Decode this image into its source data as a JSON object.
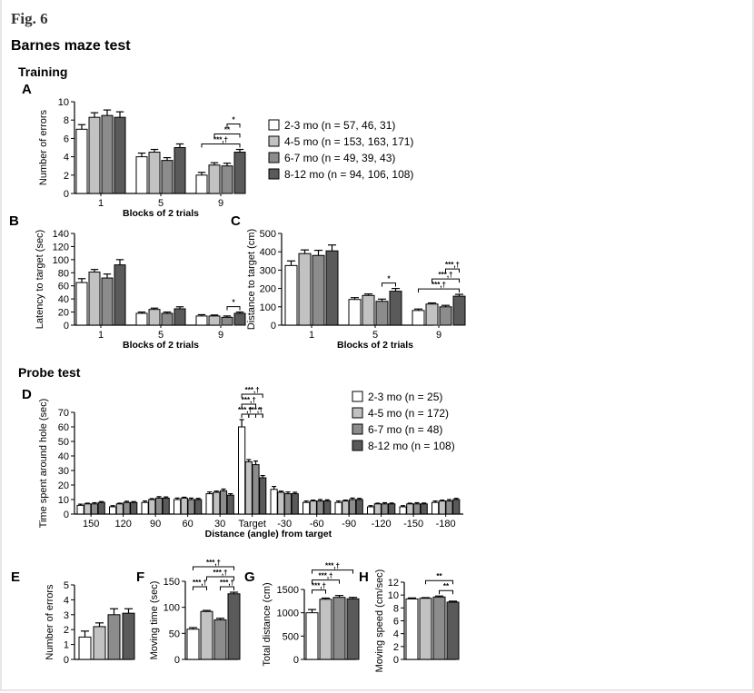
{
  "figure_label": "Fig. 6",
  "title": "Barnes maze test",
  "training_label": "Training",
  "probe_label": "Probe test",
  "colors": {
    "g1": "#ffffff",
    "g2": "#c2c2c2",
    "g3": "#8c8c8c",
    "g4": "#5a5a5a",
    "frame": "#e6e6e6"
  },
  "legends": {
    "training": [
      "2-3 mo (n = 57, 46, 31)",
      "4-5 mo (n = 153, 163, 171)",
      "6-7 mo (n = 49, 39, 43)",
      "8-12 mo (n = 94, 106, 108)"
    ],
    "probe": [
      "2-3 mo (n = 25)",
      "4-5 mo  (n = 172)",
      "6-7 mo (n = 48)",
      "8-12 mo (n = 108)"
    ]
  },
  "chart_data": [
    {
      "id": "A",
      "panel_label": "A",
      "type": "bar",
      "xlabel": "Blocks of 2 trials",
      "ylabel": "Number of errors",
      "ylim": [
        0,
        10
      ],
      "yticks": [
        0,
        2,
        4,
        6,
        8,
        10
      ],
      "categories": [
        "1",
        "5",
        "9"
      ],
      "series": [
        {
          "group": "2-3 mo",
          "values": [
            7.0,
            4.0,
            2.0
          ],
          "errors": [
            0.5,
            0.4,
            0.3
          ]
        },
        {
          "group": "4-5 mo",
          "values": [
            8.3,
            4.5,
            3.1
          ],
          "errors": [
            0.5,
            0.3,
            0.25
          ]
        },
        {
          "group": "6-7 mo",
          "values": [
            8.5,
            3.6,
            3.0
          ],
          "errors": [
            0.6,
            0.3,
            0.3
          ]
        },
        {
          "group": "8-12 mo",
          "values": [
            8.3,
            5.0,
            4.5
          ],
          "errors": [
            0.6,
            0.4,
            0.3
          ]
        }
      ],
      "significance": [
        {
          "text": "***,†",
          "cat": 2,
          "from": 0,
          "to": 3,
          "level": 0
        },
        {
          "text": "**",
          "cat": 2,
          "from": 1,
          "to": 3,
          "level": 1
        },
        {
          "text": "*",
          "cat": 2,
          "from": 2,
          "to": 3,
          "level": 2
        }
      ]
    },
    {
      "id": "B",
      "panel_label": "B",
      "type": "bar",
      "xlabel": "Blocks of 2 trials",
      "ylabel": "Latency to target (sec)",
      "ylim": [
        0,
        140
      ],
      "yticks": [
        0,
        20,
        40,
        60,
        80,
        100,
        120,
        140
      ],
      "categories": [
        "1",
        "5",
        "9"
      ],
      "series": [
        {
          "group": "2-3 mo",
          "values": [
            65,
            18,
            14
          ],
          "errors": [
            6,
            2,
            2
          ]
        },
        {
          "group": "4-5 mo",
          "values": [
            81,
            24,
            14
          ],
          "errors": [
            4,
            2,
            1.5
          ]
        },
        {
          "group": "6-7 mo",
          "values": [
            72,
            18,
            12
          ],
          "errors": [
            6,
            2,
            2
          ]
        },
        {
          "group": "8-12 mo",
          "values": [
            92,
            25,
            18
          ],
          "errors": [
            8,
            3,
            2
          ]
        }
      ],
      "significance": [
        {
          "text": "*",
          "cat": 2,
          "from": 2,
          "to": 3,
          "level": 0
        }
      ]
    },
    {
      "id": "C",
      "panel_label": "C",
      "type": "bar",
      "xlabel": "Blocks of 2 trials",
      "ylabel": "Distance to target (cm)",
      "ylim": [
        0,
        500
      ],
      "yticks": [
        0,
        100,
        200,
        300,
        400,
        500
      ],
      "categories": [
        "1",
        "5",
        "9"
      ],
      "series": [
        {
          "group": "2-3 mo",
          "values": [
            325,
            140,
            80
          ],
          "errors": [
            25,
            10,
            8
          ]
        },
        {
          "group": "4-5 mo",
          "values": [
            390,
            162,
            115
          ],
          "errors": [
            20,
            8,
            6
          ]
        },
        {
          "group": "6-7 mo",
          "values": [
            380,
            130,
            100
          ],
          "errors": [
            28,
            12,
            8
          ]
        },
        {
          "group": "8-12 mo",
          "values": [
            405,
            185,
            158
          ],
          "errors": [
            32,
            15,
            10
          ]
        }
      ],
      "significance": [
        {
          "text": "*",
          "cat": 1,
          "from": 2,
          "to": 3,
          "level": 0
        },
        {
          "text": "***,†",
          "cat": 2,
          "from": 0,
          "to": 3,
          "level": 0
        },
        {
          "text": "***,†",
          "cat": 2,
          "from": 1,
          "to": 3,
          "level": 1
        },
        {
          "text": "***,†",
          "cat": 2,
          "from": 2,
          "to": 3,
          "level": 2
        }
      ]
    },
    {
      "id": "D",
      "panel_label": "D",
      "type": "bar",
      "xlabel": "Distance (angle) from target",
      "ylabel": "Time spent around hole (sec)",
      "ylim": [
        0,
        70
      ],
      "yticks": [
        0,
        10,
        20,
        30,
        40,
        50,
        60,
        70
      ],
      "categories": [
        "150",
        "120",
        "90",
        "60",
        "30",
        "Target",
        "-30",
        "-60",
        "-90",
        "-120",
        "-150",
        "-180"
      ],
      "series": [
        {
          "group": "2-3 mo",
          "values": [
            6,
            5,
            8,
            10,
            14,
            60,
            17,
            8,
            8,
            5,
            5,
            8
          ],
          "errors": [
            0.8,
            0.8,
            1,
            1,
            1.2,
            5,
            2,
            1,
            1,
            0.8,
            0.8,
            1
          ]
        },
        {
          "group": "4-5 mo",
          "values": [
            7,
            7,
            10,
            11,
            15,
            36,
            15,
            9,
            9,
            7,
            7,
            9
          ],
          "errors": [
            0.5,
            0.5,
            0.6,
            0.6,
            0.8,
            1.5,
            0.8,
            0.6,
            0.6,
            0.5,
            0.5,
            0.6
          ]
        },
        {
          "group": "6-7 mo",
          "values": [
            7,
            8,
            11,
            10,
            16,
            34,
            14,
            9,
            10,
            7,
            7,
            9
          ],
          "errors": [
            0.8,
            0.8,
            1,
            1,
            1.2,
            2.5,
            1.2,
            1,
            1,
            0.8,
            0.8,
            1
          ]
        },
        {
          "group": "8-12 mo",
          "values": [
            8,
            8,
            11,
            10,
            13,
            25,
            14,
            9,
            10,
            7,
            7,
            10
          ],
          "errors": [
            0.6,
            0.6,
            0.8,
            0.8,
            1,
            1.5,
            1,
            0.8,
            0.8,
            0.6,
            0.6,
            0.8
          ]
        }
      ],
      "significance": [
        {
          "text": "***,†",
          "cat": 5,
          "from": 0,
          "to": 1,
          "level": 0
        },
        {
          "text": "***,†",
          "cat": 5,
          "from": 0,
          "to": 2,
          "level": 1
        },
        {
          "text": "***,†",
          "cat": 5,
          "from": 0,
          "to": 3,
          "level": 2
        },
        {
          "text": "***,†",
          "cat": 5,
          "from": 1,
          "to": 3,
          "level": 0
        },
        {
          "text": "*",
          "cat": 5,
          "from": 2,
          "to": 3,
          "level": 0
        }
      ]
    },
    {
      "id": "E",
      "panel_label": "E",
      "type": "bar",
      "ylabel": "Number of errors",
      "ylim": [
        0,
        5
      ],
      "yticks": [
        0,
        1,
        2,
        3,
        4,
        5
      ],
      "categories": [
        ""
      ],
      "series": [
        {
          "group": "2-3 mo",
          "values": [
            1.5
          ],
          "errors": [
            0.4
          ]
        },
        {
          "group": "4-5 mo",
          "values": [
            2.2
          ],
          "errors": [
            0.25
          ]
        },
        {
          "group": "6-7 mo",
          "values": [
            3.0
          ],
          "errors": [
            0.4
          ]
        },
        {
          "group": "8-12 mo",
          "values": [
            3.1
          ],
          "errors": [
            0.3
          ]
        }
      ],
      "significance": []
    },
    {
      "id": "F",
      "panel_label": "F",
      "type": "bar",
      "ylabel": "Moving time (sec)",
      "ylim": [
        0,
        150
      ],
      "yticks": [
        0,
        50,
        100,
        150
      ],
      "categories": [
        ""
      ],
      "series": [
        {
          "group": "2-3 mo",
          "values": [
            58
          ],
          "errors": [
            3
          ]
        },
        {
          "group": "4-5 mo",
          "values": [
            92
          ],
          "errors": [
            2
          ]
        },
        {
          "group": "6-7 mo",
          "values": [
            76
          ],
          "errors": [
            3
          ]
        },
        {
          "group": "8-12 mo",
          "values": [
            126
          ],
          "errors": [
            3
          ]
        }
      ],
      "significance": [
        {
          "text": "***,†",
          "cat": 0,
          "from": 0,
          "to": 1,
          "level": 0
        },
        {
          "text": "***,†",
          "cat": 0,
          "from": 0,
          "to": 3,
          "level": 2
        },
        {
          "text": "***,†",
          "cat": 0,
          "from": 1,
          "to": 3,
          "level": 1
        },
        {
          "text": "***,†",
          "cat": 0,
          "from": 2,
          "to": 3,
          "level": 0
        }
      ]
    },
    {
      "id": "G",
      "panel_label": "G",
      "type": "bar",
      "ylabel": "Total distance (cm)",
      "ylim": [
        0,
        1500
      ],
      "yticks": [
        0,
        500,
        1000,
        1500
      ],
      "categories": [
        ""
      ],
      "series": [
        {
          "group": "2-3 mo",
          "values": [
            1000
          ],
          "errors": [
            70
          ]
        },
        {
          "group": "4-5 mo",
          "values": [
            1290
          ],
          "errors": [
            25
          ]
        },
        {
          "group": "6-7 mo",
          "values": [
            1330
          ],
          "errors": [
            40
          ]
        },
        {
          "group": "8-12 mo",
          "values": [
            1300
          ],
          "errors": [
            30
          ]
        }
      ],
      "significance": [
        {
          "text": "***,†",
          "cat": 0,
          "from": 0,
          "to": 1,
          "level": 0
        },
        {
          "text": "***,†",
          "cat": 0,
          "from": 0,
          "to": 2,
          "level": 1
        },
        {
          "text": "***,†",
          "cat": 0,
          "from": 0,
          "to": 3,
          "level": 2
        }
      ]
    },
    {
      "id": "H",
      "panel_label": "H",
      "type": "bar",
      "ylabel": "Moving speed (cm/sec)",
      "ylim": [
        0,
        12
      ],
      "yticks": [
        0,
        2,
        4,
        6,
        8,
        10,
        12
      ],
      "categories": [
        ""
      ],
      "series": [
        {
          "group": "2-3 mo",
          "values": [
            9.4
          ],
          "errors": [
            0.15
          ]
        },
        {
          "group": "4-5 mo",
          "values": [
            9.5
          ],
          "errors": [
            0.1
          ]
        },
        {
          "group": "6-7 mo",
          "values": [
            9.7
          ],
          "errors": [
            0.15
          ]
        },
        {
          "group": "8-12 mo",
          "values": [
            8.9
          ],
          "errors": [
            0.15
          ]
        }
      ],
      "significance": [
        {
          "text": "**",
          "cat": 0,
          "from": 1,
          "to": 3,
          "level": 1
        },
        {
          "text": "**",
          "cat": 0,
          "from": 2,
          "to": 3,
          "level": 0
        }
      ]
    }
  ]
}
